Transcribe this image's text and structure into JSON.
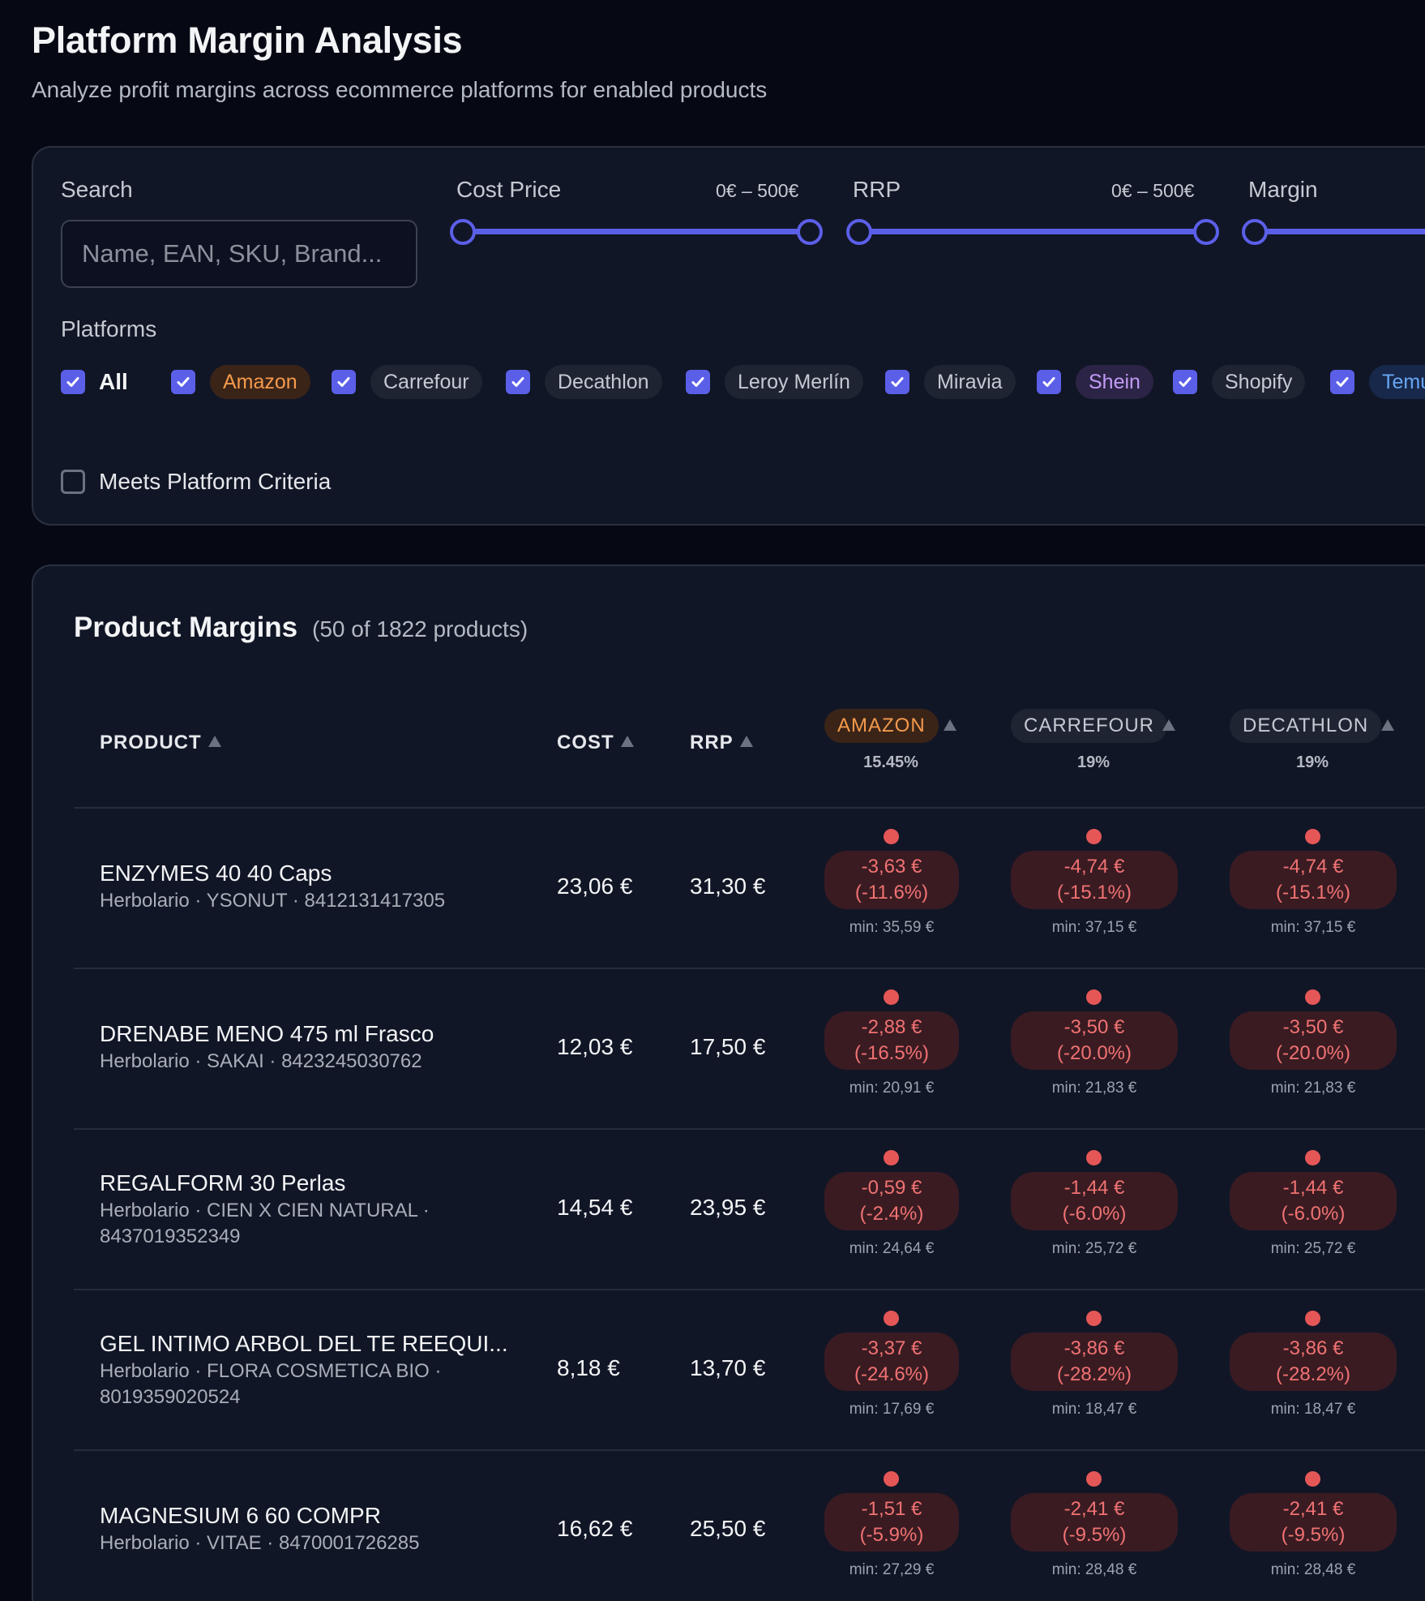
{
  "header": {
    "title": "Platform Margin Analysis",
    "subtitle": "Analyze profit margins across ecommerce platforms for enabled products"
  },
  "filters": {
    "search_label": "Search",
    "search_placeholder": "Name, EAN, SKU, Brand...",
    "cost_label": "Cost Price",
    "cost_range": "0€ – 500€",
    "rrp_label": "RRP",
    "rrp_range": "0€ – 500€",
    "margin_label": "Margin",
    "platforms_label": "Platforms",
    "all_label": "All",
    "separator": "|",
    "platforms": [
      "Amazon",
      "Carrefour",
      "Decathlon",
      "Leroy Merlín",
      "Miravia",
      "Shein",
      "Shopify",
      "Temu"
    ],
    "meets_label": "Meets Platform Criteria"
  },
  "table": {
    "title": "Product Margins",
    "count": "(50 of 1822 products)",
    "col_product": "PRODUCT",
    "col_cost": "COST",
    "col_rrp": "RRP",
    "platform_cols": [
      {
        "name": "AMAZON",
        "pct": "15.45%"
      },
      {
        "name": "CARREFOUR",
        "pct": "19%"
      },
      {
        "name": "DECATHLON",
        "pct": "19%"
      }
    ],
    "rows": [
      {
        "name": "ENZYMES 40 40 Caps",
        "meta": "Herbolario · YSONUT · 8412131417305",
        "cost": "23,06 €",
        "rrp": "31,30 €",
        "margins": [
          {
            "amount": "-3,63 €",
            "pct": "(-11.6%)",
            "min": "min: 35,59 €"
          },
          {
            "amount": "-4,74 €",
            "pct": "(-15.1%)",
            "min": "min: 37,15 €"
          },
          {
            "amount": "-4,74 €",
            "pct": "(-15.1%)",
            "min": "min: 37,15 €"
          }
        ]
      },
      {
        "name": "DRENABE MENO 475 ml Frasco",
        "meta": "Herbolario · SAKAI · 8423245030762",
        "cost": "12,03 €",
        "rrp": "17,50 €",
        "margins": [
          {
            "amount": "-2,88 €",
            "pct": "(-16.5%)",
            "min": "min: 20,91 €"
          },
          {
            "amount": "-3,50 €",
            "pct": "(-20.0%)",
            "min": "min: 21,83 €"
          },
          {
            "amount": "-3,50 €",
            "pct": "(-20.0%)",
            "min": "min: 21,83 €"
          }
        ]
      },
      {
        "name": "REGALFORM 30 Perlas",
        "meta": "Herbolario · CIEN X CIEN NATURAL · 8437019352349",
        "cost": "14,54 €",
        "rrp": "23,95 €",
        "margins": [
          {
            "amount": "-0,59 €",
            "pct": "(-2.4%)",
            "min": "min: 24,64 €"
          },
          {
            "amount": "-1,44 €",
            "pct": "(-6.0%)",
            "min": "min: 25,72 €"
          },
          {
            "amount": "-1,44 €",
            "pct": "(-6.0%)",
            "min": "min: 25,72 €"
          }
        ]
      },
      {
        "name": "GEL INTIMO ARBOL DEL TE REEQUI...",
        "meta": "Herbolario · FLORA COSMETICA BIO · 8019359020524",
        "cost": "8,18 €",
        "rrp": "13,70 €",
        "margins": [
          {
            "amount": "-3,37 €",
            "pct": "(-24.6%)",
            "min": "min: 17,69 €"
          },
          {
            "amount": "-3,86 €",
            "pct": "(-28.2%)",
            "min": "min: 18,47 €"
          },
          {
            "amount": "-3,86 €",
            "pct": "(-28.2%)",
            "min": "min: 18,47 €"
          }
        ]
      },
      {
        "name": "MAGNESIUM 6 60 COMPR",
        "meta": "Herbolario · VITAE · 8470001726285",
        "cost": "16,62 €",
        "rrp": "25,50 €",
        "margins": [
          {
            "amount": "-1,51 €",
            "pct": "(-5.9%)",
            "min": "min: 27,29 €"
          },
          {
            "amount": "-2,41 €",
            "pct": "(-9.5%)",
            "min": "min: 28,48 €"
          },
          {
            "amount": "-2,41 €",
            "pct": "(-9.5%)",
            "min": "min: 28,48 €"
          }
        ]
      }
    ]
  },
  "colors": {
    "accent": "#5b5fe8",
    "negative": "#f07272",
    "amazon": "#f59a4c",
    "shein": "#c39bf6",
    "temu": "#68a6f3"
  }
}
